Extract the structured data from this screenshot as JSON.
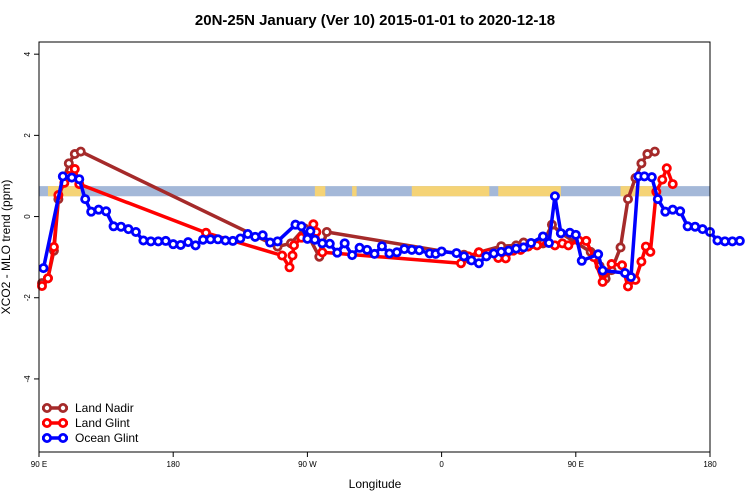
{
  "chart_data": {
    "type": "line",
    "title": "20N-25N January (Ver 10)   2015-01-01 to 2020-12-18",
    "xlabel": "Longitude",
    "ylabel": "XCO2 - MLO trend (ppm)",
    "x_ticks": [
      {
        "label": "90 E",
        "lon": 90
      },
      {
        "label": "180",
        "lon": 180
      },
      {
        "label": "90 W",
        "lon": 270
      },
      {
        "label": "0",
        "lon": 360
      },
      {
        "label": "90 E",
        "lon": 450
      },
      {
        "label": "180",
        "lon": 540
      }
    ],
    "xlim": [
      90,
      540
    ],
    "y_ticks": [
      -4,
      -2,
      0,
      2,
      4
    ],
    "ylim": [
      -5.8,
      4.3
    ],
    "grid": false,
    "legend_position": "bottom-left",
    "land_band": {
      "y_min": 0.5,
      "y_max": 0.75,
      "ocean_color": "#a4b8d8",
      "land_color": "#f5d376"
    },
    "series": [
      {
        "name": "Land Nadir",
        "color": "#a52a2a",
        "points": [
          [
            92,
            -1.64
          ],
          [
            96,
            -1.52
          ],
          [
            100,
            -0.84
          ],
          [
            103,
            0.43
          ],
          [
            107,
            0.95
          ],
          [
            110,
            1.31
          ],
          [
            114,
            1.54
          ],
          [
            118,
            1.6
          ],
          [
            250,
            -0.74
          ],
          [
            259,
            -0.66
          ],
          [
            268,
            -0.29
          ],
          [
            278,
            -0.99
          ],
          [
            283,
            -0.38
          ],
          [
            375,
            -0.94
          ],
          [
            379,
            -1.06
          ],
          [
            385,
            -0.88
          ],
          [
            400,
            -0.73
          ],
          [
            410,
            -0.71
          ],
          [
            415,
            -0.64
          ],
          [
            420,
            -0.68
          ],
          [
            428,
            -0.66
          ],
          [
            434,
            -0.2
          ],
          [
            440,
            -0.41
          ],
          [
            460,
            -0.87
          ],
          [
            466,
            -1.22
          ],
          [
            470,
            -1.53
          ],
          [
            474,
            -1.32
          ],
          [
            480,
            -0.76
          ],
          [
            485,
            0.43
          ],
          [
            490,
            0.95
          ],
          [
            494,
            1.31
          ],
          [
            498,
            1.54
          ],
          [
            503,
            1.6
          ]
        ]
      },
      {
        "name": "Land Glint",
        "color": "#ff0000",
        "points": [
          [
            92,
            -1.71
          ],
          [
            96,
            -1.52
          ],
          [
            100,
            -0.75
          ],
          [
            103,
            0.53
          ],
          [
            107,
            0.83
          ],
          [
            110,
            1.0
          ],
          [
            114,
            1.17
          ],
          [
            117,
            0.8
          ],
          [
            202,
            -0.4
          ],
          [
            253,
            -0.96
          ],
          [
            258,
            -1.25
          ],
          [
            260,
            -0.96
          ],
          [
            261,
            -0.71
          ],
          [
            266,
            -0.52
          ],
          [
            270,
            -0.45
          ],
          [
            274,
            -0.19
          ],
          [
            276,
            -0.38
          ],
          [
            280,
            -0.88
          ],
          [
            373,
            -1.15
          ],
          [
            378,
            -0.98
          ],
          [
            385,
            -0.88
          ],
          [
            391,
            -0.91
          ],
          [
            398,
            -1.02
          ],
          [
            403,
            -1.03
          ],
          [
            408,
            -0.84
          ],
          [
            413,
            -0.82
          ],
          [
            418,
            -0.74
          ],
          [
            424,
            -0.71
          ],
          [
            431,
            -0.64
          ],
          [
            436,
            -0.71
          ],
          [
            441,
            -0.66
          ],
          [
            445,
            -0.71
          ],
          [
            452,
            -0.59
          ],
          [
            457,
            -0.6
          ],
          [
            462,
            -1.0
          ],
          [
            468,
            -1.61
          ],
          [
            474,
            -1.17
          ],
          [
            481,
            -1.2
          ],
          [
            485,
            -1.72
          ],
          [
            490,
            -1.56
          ],
          [
            494,
            -1.11
          ],
          [
            497,
            -0.74
          ],
          [
            500,
            -0.87
          ],
          [
            504,
            0.61
          ],
          [
            508,
            0.91
          ],
          [
            511,
            1.19
          ],
          [
            515,
            0.8
          ]
        ]
      },
      {
        "name": "Ocean Glint",
        "color": "#0000ff",
        "points": [
          [
            93,
            -1.27
          ],
          [
            106,
            0.99
          ],
          [
            112,
            0.96
          ],
          [
            117,
            0.92
          ],
          [
            121,
            0.43
          ],
          [
            125,
            0.12
          ],
          [
            130,
            0.17
          ],
          [
            135,
            0.13
          ],
          [
            140,
            -0.24
          ],
          [
            145,
            -0.25
          ],
          [
            150,
            -0.31
          ],
          [
            155,
            -0.38
          ],
          [
            160,
            -0.59
          ],
          [
            165,
            -0.61
          ],
          [
            170,
            -0.61
          ],
          [
            175,
            -0.6
          ],
          [
            180,
            -0.68
          ],
          [
            185,
            -0.7
          ],
          [
            190,
            -0.63
          ],
          [
            195,
            -0.71
          ],
          [
            200,
            -0.57
          ],
          [
            205,
            -0.56
          ],
          [
            210,
            -0.56
          ],
          [
            215,
            -0.59
          ],
          [
            220,
            -0.6
          ],
          [
            225,
            -0.54
          ],
          [
            230,
            -0.43
          ],
          [
            235,
            -0.5
          ],
          [
            240,
            -0.46
          ],
          [
            245,
            -0.64
          ],
          [
            250,
            -0.61
          ],
          [
            262,
            -0.2
          ],
          [
            266,
            -0.24
          ],
          [
            270,
            -0.55
          ],
          [
            272,
            -0.36
          ],
          [
            275,
            -0.57
          ],
          [
            280,
            -0.66
          ],
          [
            285,
            -0.67
          ],
          [
            290,
            -0.89
          ],
          [
            295,
            -0.66
          ],
          [
            300,
            -0.95
          ],
          [
            305,
            -0.77
          ],
          [
            310,
            -0.82
          ],
          [
            315,
            -0.92
          ],
          [
            320,
            -0.73
          ],
          [
            325,
            -0.91
          ],
          [
            330,
            -0.88
          ],
          [
            335,
            -0.8
          ],
          [
            340,
            -0.82
          ],
          [
            345,
            -0.83
          ],
          [
            352,
            -0.91
          ],
          [
            356,
            -0.92
          ],
          [
            360,
            -0.86
          ],
          [
            370,
            -0.9
          ],
          [
            375,
            -0.98
          ],
          [
            380,
            -1.08
          ],
          [
            385,
            -1.15
          ],
          [
            390,
            -0.98
          ],
          [
            395,
            -0.91
          ],
          [
            400,
            -0.87
          ],
          [
            405,
            -0.84
          ],
          [
            410,
            -0.79
          ],
          [
            415,
            -0.76
          ],
          [
            420,
            -0.65
          ],
          [
            428,
            -0.49
          ],
          [
            432,
            -0.65
          ],
          [
            436,
            0.5
          ],
          [
            440,
            -0.41
          ],
          [
            446,
            -0.4
          ],
          [
            450,
            -0.45
          ],
          [
            454,
            -1.09
          ],
          [
            465,
            -0.93
          ],
          [
            468,
            -1.33
          ],
          [
            483,
            -1.39
          ],
          [
            487,
            -1.49
          ],
          [
            492,
            0.99
          ],
          [
            496,
            0.99
          ],
          [
            501,
            0.97
          ],
          [
            505,
            0.43
          ],
          [
            510,
            0.12
          ],
          [
            515,
            0.17
          ],
          [
            520,
            0.13
          ],
          [
            525,
            -0.24
          ],
          [
            530,
            -0.25
          ],
          [
            535,
            -0.31
          ],
          [
            540,
            -0.38
          ],
          [
            545,
            -0.59
          ],
          [
            550,
            -0.61
          ],
          [
            555,
            -0.61
          ],
          [
            560,
            -0.6
          ]
        ]
      }
    ]
  }
}
